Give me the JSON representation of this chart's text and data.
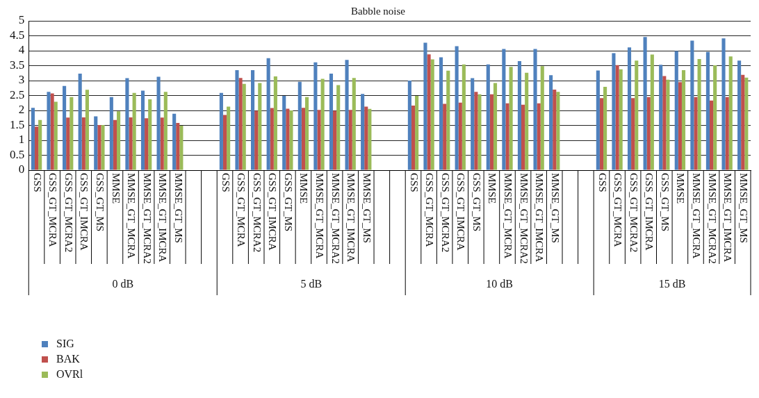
{
  "chart_data": {
    "type": "bar",
    "title": "Babble noise",
    "categories": [
      "GSS",
      "GSS_GT_MCRA",
      "GSS_GT_MCRA2",
      "GSS_GT_IMCRA",
      "GSS_GT_MS",
      "MMSE",
      "MMSE_GT_MCRA",
      "MMSE_GT_MCRA2",
      "MMSE_GT_IMCRA",
      "MMSE_GT_MS",
      null,
      null,
      "GSS",
      "GSS_GT_MCRA",
      "GSS_GT_MCRA2",
      "GSS_GT_IMCRA",
      "GSS_GT_MS",
      "MMSE",
      "MMSE_GT_MCRA",
      "MMSE_GT_MCRA2",
      "MMSE_GT_IMCRA",
      "MMSE_GT_MS",
      null,
      null,
      "GSS",
      "GSS_GT_MCRA",
      "GSS_GT_MCRA2",
      "GSS_GT_IMCRA",
      "GSS_GT_MS",
      "MMSE",
      "MMSE_GT_MCRA",
      "MMSE_GT_MCRA2",
      "MMSE_GT_IMCRA",
      "MMSE_GT_MS",
      null,
      null,
      "GSS",
      "GSS_GT_MCRA",
      "GSS_GT_MCRA2",
      "GSS_GT_IMCRA",
      "GSS_GT_MS",
      "MMSE",
      "MMSE_GT_MCRA",
      "MMSE_GT_MCRA2",
      "MMSE_GT_IMCRA",
      "MMSE_GT_MS"
    ],
    "series": [
      {
        "name": "SIG",
        "color": "#4f81bd",
        "values": [
          2.09,
          2.62,
          2.82,
          3.23,
          1.8,
          2.45,
          3.08,
          2.66,
          3.13,
          1.89,
          null,
          null,
          2.59,
          3.35,
          3.35,
          3.75,
          2.49,
          2.96,
          3.61,
          3.23,
          3.69,
          2.55,
          null,
          null,
          3.0,
          4.27,
          3.78,
          4.15,
          3.08,
          3.54,
          4.06,
          3.65,
          4.06,
          3.18,
          null,
          null,
          3.34,
          3.92,
          4.11,
          4.46,
          3.53,
          3.99,
          4.34,
          3.96,
          4.41,
          3.67
        ]
      },
      {
        "name": "BAK",
        "color": "#c0504d",
        "values": [
          1.46,
          2.57,
          1.76,
          1.77,
          1.51,
          1.68,
          1.77,
          1.74,
          1.76,
          1.58,
          null,
          null,
          1.85,
          3.09,
          1.99,
          2.08,
          2.06,
          2.09,
          2.02,
          1.99,
          2.02,
          2.13,
          null,
          null,
          2.16,
          3.88,
          2.22,
          2.26,
          2.62,
          2.54,
          2.24,
          2.19,
          2.24,
          2.7,
          null,
          null,
          2.41,
          3.52,
          2.41,
          2.45,
          3.15,
          2.95,
          2.45,
          2.33,
          2.45,
          3.19
        ]
      },
      {
        "name": "OVRl",
        "color": "#9bbb59",
        "values": [
          1.68,
          2.29,
          2.45,
          2.69,
          1.51,
          1.97,
          2.59,
          2.37,
          2.62,
          1.49,
          null,
          null,
          2.13,
          2.89,
          2.92,
          3.14,
          2.0,
          2.45,
          3.06,
          2.85,
          3.09,
          2.05,
          null,
          null,
          2.49,
          3.71,
          3.33,
          3.54,
          2.54,
          2.92,
          3.46,
          3.26,
          3.48,
          2.62,
          null,
          null,
          2.79,
          3.38,
          3.67,
          3.87,
          3.03,
          3.35,
          3.72,
          3.51,
          3.81,
          3.1
        ]
      }
    ],
    "annotations": [
      "0 dB",
      "5 dB",
      "10 dB",
      "15 dB"
    ],
    "ylim": [
      0,
      5
    ],
    "yticks": [
      0,
      0.5,
      1,
      1.5,
      2,
      2.5,
      3,
      3.5,
      4,
      4.5,
      5
    ],
    "grid": "y",
    "legend": "bottom left"
  }
}
